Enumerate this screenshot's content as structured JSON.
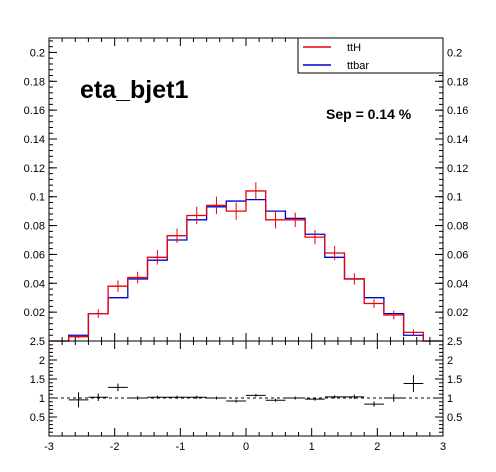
{
  "chart_data": [
    {
      "type": "line",
      "panel": "main",
      "title": "eta_bjet1",
      "annotation": "Sep = 0.14 %",
      "xlabel": "",
      "ylabel": "",
      "xlim": [
        -3,
        3
      ],
      "ylim": [
        0,
        0.21
      ],
      "grid": false,
      "legend_position": "top-right",
      "y_ticks": [
        "0.02",
        "0.04",
        "0.06",
        "0.08",
        "0.1",
        "0.12",
        "0.14",
        "0.16",
        "0.18",
        "0.2"
      ],
      "y_tick_values": [
        0.02,
        0.04,
        0.06,
        0.08,
        0.1,
        0.12,
        0.14,
        0.16,
        0.18,
        0.2
      ],
      "bin_edges": [
        -3.0,
        -2.7,
        -2.4,
        -2.1,
        -1.8,
        -1.5,
        -1.2,
        -0.9,
        -0.6,
        -0.3,
        0.0,
        0.3,
        0.6,
        0.9,
        1.2,
        1.5,
        1.8,
        2.1,
        2.4,
        2.7,
        3.0
      ],
      "series": [
        {
          "name": "ttH",
          "color": "#e8000b",
          "values": [
            0.0,
            0.003,
            0.019,
            0.038,
            0.044,
            0.058,
            0.073,
            0.087,
            0.094,
            0.09,
            0.104,
            0.084,
            0.084,
            0.072,
            0.061,
            0.043,
            0.026,
            0.018,
            0.006,
            0.0
          ],
          "errors": [
            0,
            0.001,
            0.003,
            0.004,
            0.004,
            0.005,
            0.005,
            0.006,
            0.006,
            0.006,
            0.006,
            0.006,
            0.005,
            0.005,
            0.005,
            0.004,
            0.003,
            0.003,
            0.002,
            0
          ]
        },
        {
          "name": "ttbar",
          "color": "#0000cc",
          "values": [
            0.0,
            0.004,
            0.019,
            0.03,
            0.043,
            0.056,
            0.07,
            0.084,
            0.093,
            0.097,
            0.098,
            0.09,
            0.085,
            0.074,
            0.058,
            0.043,
            0.03,
            0.019,
            0.004,
            0.0
          ]
        }
      ]
    },
    {
      "type": "scatter",
      "panel": "ratio",
      "xlabel": "",
      "ylabel": "",
      "xlim": [
        -3,
        3
      ],
      "ylim": [
        0,
        2.5
      ],
      "x_ticks": [
        "-3",
        "-2",
        "-1",
        "0",
        "1",
        "2",
        "3"
      ],
      "x_tick_values": [
        -3,
        -2,
        -1,
        0,
        1,
        2,
        3
      ],
      "y_ticks": [
        "0.5",
        "1",
        "1.5",
        "2",
        "2.5"
      ],
      "y_tick_values": [
        0.5,
        1,
        1.5,
        2,
        2.5
      ],
      "reference_line": 1,
      "x": [
        -2.55,
        -2.25,
        -1.95,
        -1.65,
        -1.35,
        -1.05,
        -0.75,
        -0.45,
        -0.15,
        0.15,
        0.45,
        0.75,
        1.05,
        1.35,
        1.65,
        1.95,
        2.25,
        2.55
      ],
      "values": [
        0.95,
        1.02,
        1.28,
        1.0,
        1.02,
        1.02,
        1.02,
        1.0,
        0.92,
        1.07,
        0.94,
        1.0,
        0.97,
        1.03,
        1.03,
        0.84,
        1.0,
        1.38
      ],
      "errors": [
        0.2,
        0.1,
        0.1,
        0.05,
        0.04,
        0.04,
        0.04,
        0.04,
        0.04,
        0.04,
        0.04,
        0.04,
        0.04,
        0.04,
        0.06,
        0.07,
        0.1,
        0.22
      ]
    }
  ]
}
